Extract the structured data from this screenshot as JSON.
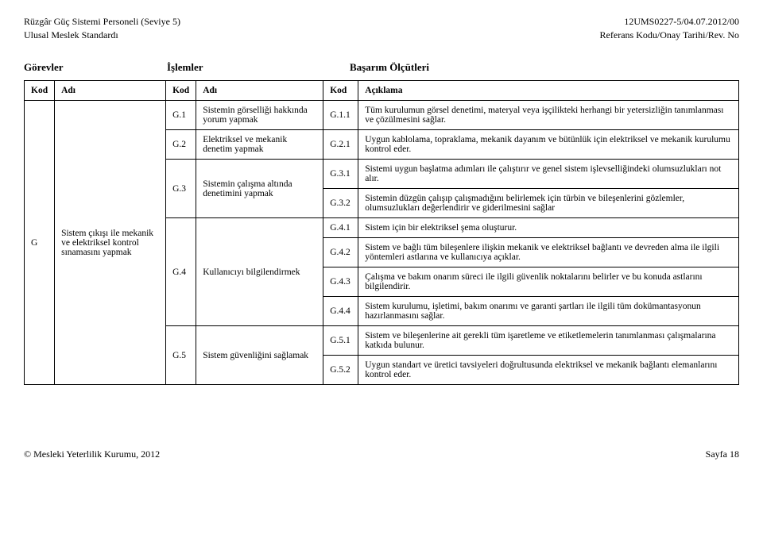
{
  "header": {
    "leftLine1": "Rüzgâr Güç Sistemi Personeli (Seviye 5)",
    "leftLine2": "Ulusal Meslek Standardı",
    "rightLine1": "12UMS0227-5/04.07.2012/00",
    "rightLine2": "Referans Kodu/Onay Tarihi/Rev. No"
  },
  "sectionHeadings": {
    "gorevler": "Görevler",
    "islemler": "İşlemler",
    "basarim": "Başarım Ölçütleri"
  },
  "tableHead": {
    "kod": "Kod",
    "adi": "Adı",
    "aciklama": "Açıklama"
  },
  "gorev": {
    "kod": "G",
    "adi": "Sistem çıkışı ile mekanik ve elektriksel kontrol sınamasını yapmak"
  },
  "islemler": [
    {
      "kod": "G.1",
      "adi": "Sistemin görselliği hakkında yorum yapmak"
    },
    {
      "kod": "G.2",
      "adi": "Elektriksel ve mekanik denetim yapmak"
    },
    {
      "kod": "G.3",
      "adi": "Sistemin çalışma altında denetimini yapmak"
    },
    {
      "kod": "G.4",
      "adi": "Kullanıcıyı bilgilendirmek"
    },
    {
      "kod": "G.5",
      "adi": "Sistem güvenliğini sağlamak"
    }
  ],
  "olcutler": {
    "g11": {
      "kod": "G.1.1",
      "text": "Tüm kurulumun görsel denetimi, materyal veya işçilikteki herhangi bir yetersizliğin tanımlanması ve çözülmesini sağlar."
    },
    "g21": {
      "kod": "G.2.1",
      "text": "Uygun kablolama, topraklama, mekanik dayanım ve bütünlük için elektriksel ve mekanik kurulumu kontrol eder."
    },
    "g31": {
      "kod": "G.3.1",
      "text": "Sistemi uygun başlatma adımları ile çalıştırır ve genel sistem işlevselliğindeki olumsuzlukları not alır."
    },
    "g32": {
      "kod": "G.3.2",
      "text": "Sistemin düzgün çalışıp çalışmadığını belirlemek için türbin ve bileşenlerini gözlemler, olumsuzlukları değerlendirir ve giderilmesini sağlar"
    },
    "g41": {
      "kod": "G.4.1",
      "text": "Sistem için bir elektriksel şema oluşturur."
    },
    "g42": {
      "kod": "G.4.2",
      "text": "Sistem ve bağlı tüm bileşenlere ilişkin mekanik ve elektriksel bağlantı ve devreden alma ile ilgili yöntemleri astlarına ve kullanıcıya açıklar."
    },
    "g43": {
      "kod": "G.4.3",
      "text": "Çalışma ve bakım onarım süreci ile ilgili güvenlik noktalarını belirler ve bu konuda astlarını bilgilendirir."
    },
    "g44": {
      "kod": "G.4.4",
      "text": "Sistem kurulumu, işletimi, bakım onarımı ve garanti şartları ile ilgili tüm dokümantasyonun hazırlanmasını sağlar."
    },
    "g51": {
      "kod": "G.5.1",
      "text": "Sistem ve bileşenlerine ait gerekli tüm işaretleme ve etiketlemelerin tanımlanması çalışmalarına katkıda bulunur."
    },
    "g52": {
      "kod": "G.5.2",
      "text": "Uygun standart ve üretici tavsiyeleri doğrultusunda elektriksel ve mekanik bağlantı elemanlarını kontrol eder."
    }
  },
  "footer": {
    "left": "© Mesleki Yeterlilik Kurumu, 2012",
    "right": "Sayfa 18"
  }
}
